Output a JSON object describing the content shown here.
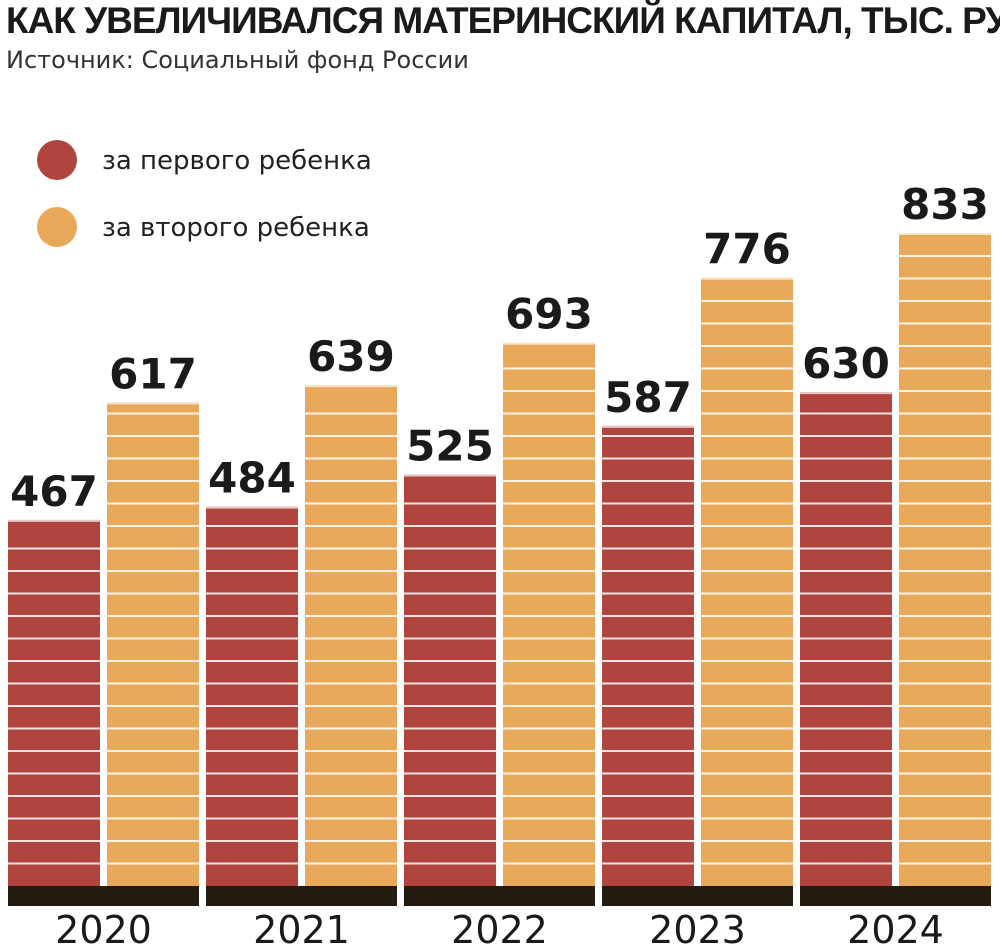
{
  "chart_data": {
    "type": "bar",
    "title": "КАК УВЕЛИЧИВАЛСЯ МАТЕРИНСКИЙ КАПИТАЛ, ТЫС. РУБ.",
    "subtitle": "Источник: Социальный фонд России",
    "categories": [
      "2020",
      "2021",
      "2022",
      "2023",
      "2024"
    ],
    "series": [
      {
        "name": "за первого ребенка",
        "color": "#b04540",
        "values": [
          467,
          484,
          525,
          587,
          630
        ]
      },
      {
        "name": "за второго ребенка",
        "color": "#e9a95a",
        "values": [
          617,
          639,
          693,
          776,
          833
        ]
      }
    ],
    "xlabel": "",
    "ylabel": "",
    "ylim": [
      0,
      833
    ],
    "grid": false,
    "legend": "top-left",
    "data_labels": true
  }
}
